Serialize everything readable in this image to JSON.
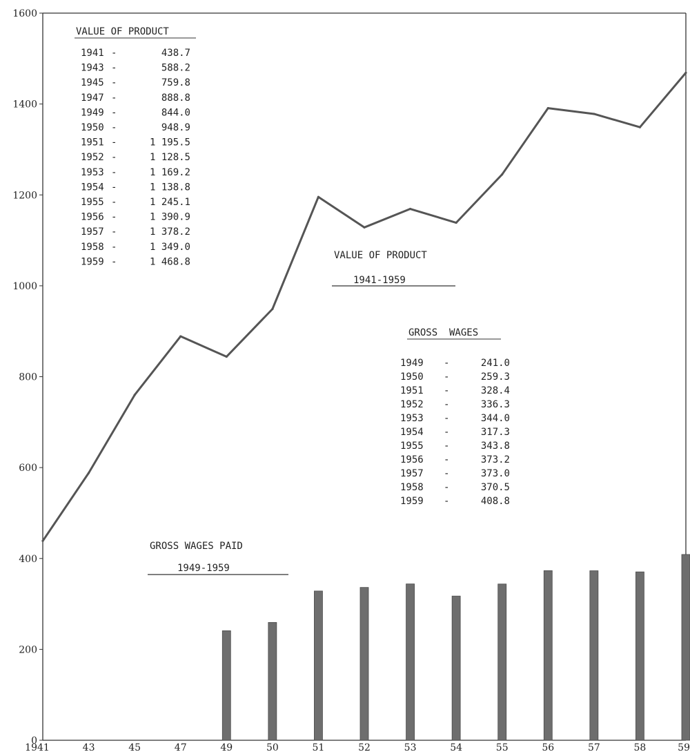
{
  "colors": {
    "line": "#555555",
    "bar": "#6e6e6e",
    "axis": "#333333"
  },
  "chart_data": {
    "type": "line",
    "x": [
      "1941",
      "43",
      "45",
      "47",
      "49",
      "50",
      "51",
      "52",
      "53",
      "54",
      "55",
      "56",
      "57",
      "58",
      "59"
    ],
    "ylim": [
      0,
      1600
    ],
    "y_ticks": [
      "0",
      "200",
      "400",
      "600",
      "800",
      "1000",
      "1200",
      "1400",
      "1600"
    ],
    "grid": false,
    "series": [
      {
        "name": "VALUE OF PRODUCT",
        "type": "line",
        "x": [
          "1941",
          "43",
          "45",
          "47",
          "49",
          "50",
          "51",
          "52",
          "53",
          "54",
          "55",
          "56",
          "57",
          "58",
          "59"
        ],
        "values": [
          438.7,
          588.2,
          759.8,
          888.8,
          844.0,
          948.9,
          1195.5,
          1128.5,
          1169.2,
          1138.8,
          1245.1,
          1390.9,
          1378.2,
          1349.0,
          1468.8
        ]
      },
      {
        "name": "GROSS WAGES",
        "type": "bar",
        "x": [
          "49",
          "50",
          "51",
          "52",
          "53",
          "54",
          "55",
          "56",
          "57",
          "58",
          "59"
        ],
        "values": [
          241.0,
          259.3,
          328.4,
          336.3,
          344.0,
          317.3,
          343.8,
          373.2,
          373.0,
          370.5,
          408.8
        ]
      }
    ],
    "annotations": {
      "value_title": "VALUE OF PRODUCT",
      "value_subtitle": "1941-1959",
      "wages_title": "GROSS WAGES PAID",
      "wages_subtitle": "1949-1959"
    },
    "tables": {
      "value": {
        "title": "VALUE OF PRODUCT",
        "rows": [
          {
            "year": "1941",
            "value": "438.7"
          },
          {
            "year": "1943",
            "value": "588.2"
          },
          {
            "year": "1945",
            "value": "759.8"
          },
          {
            "year": "1947",
            "value": "888.8"
          },
          {
            "year": "1949",
            "value": "844.0"
          },
          {
            "year": "1950",
            "value": "948.9"
          },
          {
            "year": "1951",
            "value": "1 195.5"
          },
          {
            "year": "1952",
            "value": "1 128.5"
          },
          {
            "year": "1953",
            "value": "1 169.2"
          },
          {
            "year": "1954",
            "value": "1 138.8"
          },
          {
            "year": "1955",
            "value": "1 245.1"
          },
          {
            "year": "1956",
            "value": "1 390.9"
          },
          {
            "year": "1957",
            "value": "1 378.2"
          },
          {
            "year": "1958",
            "value": "1 349.0"
          },
          {
            "year": "1959",
            "value": "1 468.8"
          }
        ]
      },
      "wages": {
        "title": "GROSS  WAGES",
        "rows": [
          {
            "year": "1949",
            "value": "241.0"
          },
          {
            "year": "1950",
            "value": "259.3"
          },
          {
            "year": "1951",
            "value": "328.4"
          },
          {
            "year": "1952",
            "value": "336.3"
          },
          {
            "year": "1953",
            "value": "344.0"
          },
          {
            "year": "1954",
            "value": "317.3"
          },
          {
            "year": "1955",
            "value": "343.8"
          },
          {
            "year": "1956",
            "value": "373.2"
          },
          {
            "year": "1957",
            "value": "373.0"
          },
          {
            "year": "1958",
            "value": "370.5"
          },
          {
            "year": "1959",
            "value": "408.8"
          }
        ]
      }
    }
  }
}
